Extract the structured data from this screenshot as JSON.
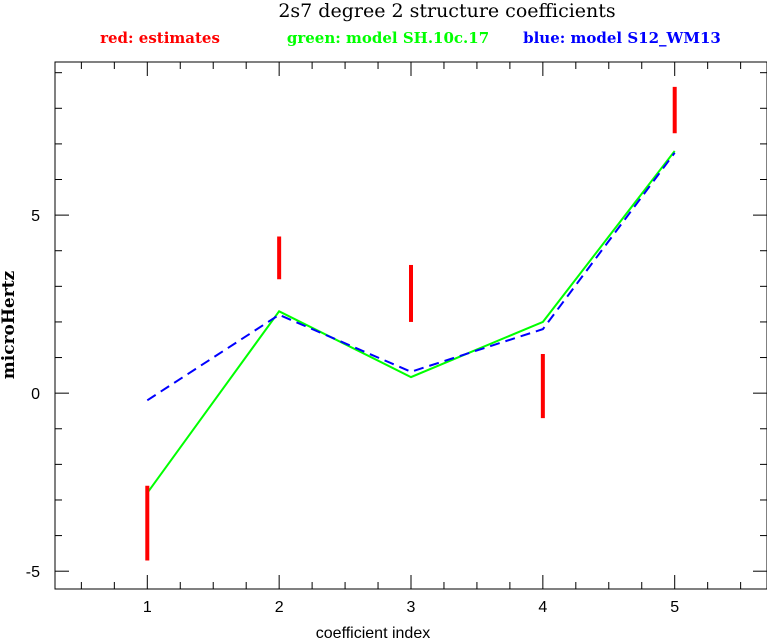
{
  "chart_data": {
    "type": "line",
    "title": "2s7 degree 2 structure coefficients",
    "legend": {
      "placement": "top",
      "entries": [
        {
          "label": "red: estimates",
          "color": "#ff0000"
        },
        {
          "label": "green: model SH.10c.17",
          "color": "#00ff00"
        },
        {
          "label": "blue: model S12_WM13",
          "color": "#0000ff"
        }
      ]
    },
    "xlabel": "coefficient index",
    "ylabel": "microHertz",
    "xlim": [
      0.3,
      5.7
    ],
    "ylim": [
      -5.5,
      9.3
    ],
    "x_ticks": [
      1,
      2,
      3,
      4,
      5
    ],
    "y_ticks": [
      -5,
      0,
      5
    ],
    "y_minor_step": 1,
    "x_minor_step": 0.25,
    "grid": false,
    "estimates": [
      {
        "x": 1,
        "low": -4.7,
        "high": -2.6
      },
      {
        "x": 2,
        "low": 3.2,
        "high": 4.4
      },
      {
        "x": 3,
        "low": 2.0,
        "high": 3.6
      },
      {
        "x": 4,
        "low": -0.7,
        "high": 1.1
      },
      {
        "x": 5,
        "low": 7.3,
        "high": 8.6
      }
    ],
    "series": [
      {
        "name": "model SH.10c.17",
        "color": "#00ff00",
        "dash": "solid",
        "x": [
          1,
          2,
          3,
          4,
          5
        ],
        "values": [
          -2.8,
          2.3,
          0.45,
          2.0,
          6.8
        ]
      },
      {
        "name": "model S12_WM13",
        "color": "#0000ff",
        "dash": "dashed",
        "x": [
          1,
          2,
          3,
          4,
          5
        ],
        "values": [
          -0.2,
          2.2,
          0.6,
          1.8,
          6.75
        ]
      }
    ]
  }
}
